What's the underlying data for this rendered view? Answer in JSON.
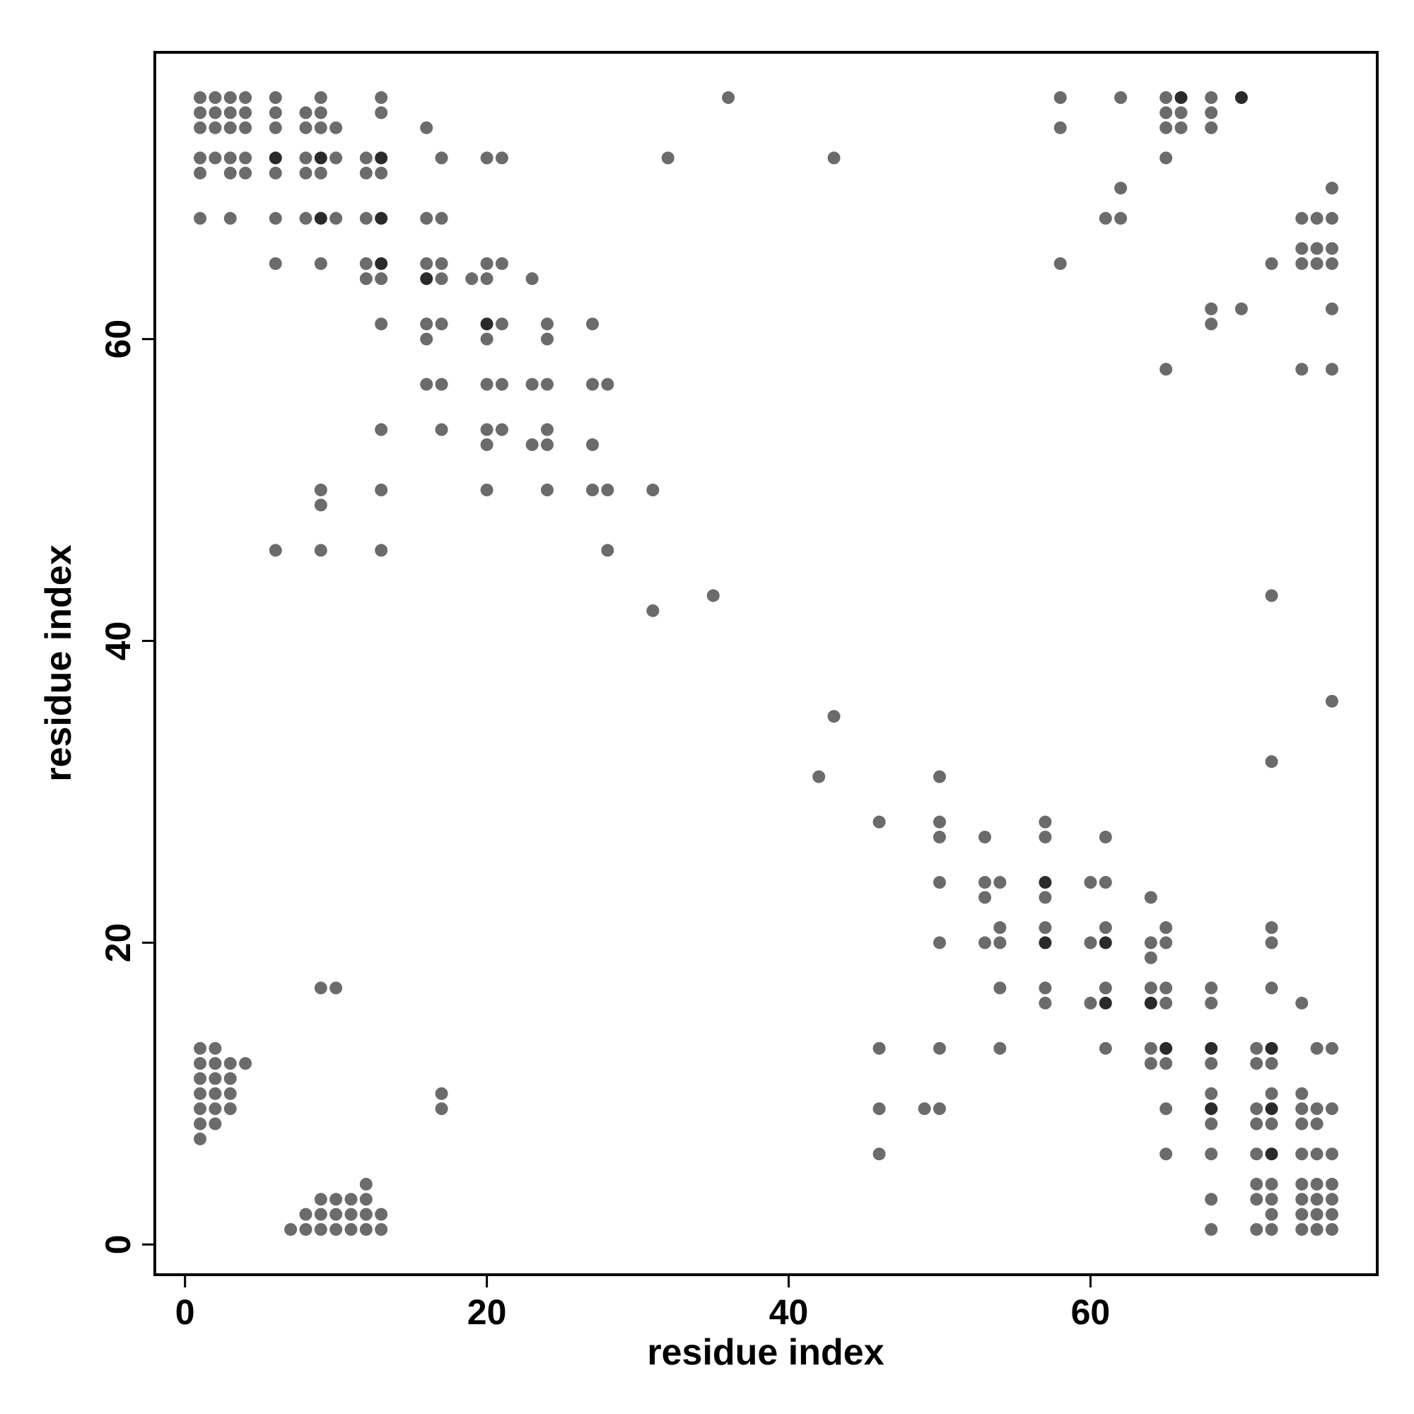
{
  "chart_data": {
    "type": "scatter",
    "xlabel": "residue index",
    "ylabel": "residue index",
    "xlim": [
      -2,
      79
    ],
    "ylim": [
      -2,
      79
    ],
    "xticks": [
      0,
      20,
      40,
      60
    ],
    "yticks": [
      0,
      20,
      40,
      60
    ],
    "series": [
      {
        "color": "#6b6b6b",
        "x": [
          1,
          2,
          3,
          4,
          6,
          9,
          13,
          36,
          58,
          62,
          65,
          68,
          1,
          2,
          3,
          4,
          6,
          8,
          9,
          13,
          65,
          66,
          68,
          1,
          2,
          3,
          4,
          6,
          8,
          9,
          10,
          16,
          58,
          65,
          66,
          68,
          1,
          2,
          3,
          4,
          8,
          10,
          12,
          17,
          20,
          21,
          32,
          43,
          65,
          1,
          3,
          4,
          6,
          8,
          9,
          12,
          13,
          62,
          76,
          1,
          3,
          6,
          8,
          10,
          12,
          16,
          17,
          61,
          62,
          74,
          75,
          76,
          74,
          75,
          76,
          6,
          9,
          12,
          16,
          17,
          20,
          21,
          58,
          72,
          74,
          75,
          76,
          12,
          13,
          17,
          19,
          20,
          23,
          68,
          70,
          76,
          13,
          16,
          17,
          21,
          24,
          27,
          68,
          16,
          20,
          24,
          65,
          74,
          76,
          16,
          17,
          20,
          21,
          23,
          24,
          27,
          28,
          13,
          17,
          20,
          21,
          24,
          20,
          23,
          24,
          27,
          9,
          13,
          20,
          24,
          27,
          28,
          31,
          9,
          6,
          9,
          13,
          28,
          35,
          72,
          31,
          76,
          43,
          72,
          42,
          50,
          46,
          50,
          57,
          50,
          53,
          57,
          61,
          50,
          53,
          54,
          60,
          61,
          53,
          57,
          64,
          54,
          57,
          61,
          65,
          72,
          50,
          53,
          54,
          60,
          64,
          65,
          72,
          64,
          9,
          10,
          54,
          57,
          61,
          64,
          65,
          68,
          72,
          57,
          60,
          65,
          68,
          74,
          1,
          2,
          46,
          50,
          54,
          61,
          64,
          71,
          75,
          76,
          1,
          2,
          3,
          4,
          64,
          65,
          68,
          71,
          72,
          1,
          2,
          3,
          1,
          2,
          3,
          17,
          68,
          72,
          74,
          1,
          2,
          3,
          17,
          46,
          49,
          50,
          65,
          71,
          74,
          75,
          76,
          1,
          2,
          68,
          71,
          72,
          74,
          75,
          1,
          46,
          65,
          68,
          71,
          74,
          75,
          76,
          12,
          71,
          72,
          74,
          75,
          76,
          9,
          10,
          11,
          12,
          68,
          71,
          72,
          74,
          75,
          76,
          8,
          9,
          10,
          11,
          12,
          13,
          72,
          74,
          75,
          76,
          7,
          8,
          9,
          10,
          11,
          12,
          13,
          68,
          71,
          72,
          74,
          75,
          76
        ],
        "values": [
          76,
          76,
          76,
          76,
          76,
          76,
          76,
          76,
          76,
          76,
          76,
          76,
          75,
          75,
          75,
          75,
          75,
          75,
          75,
          75,
          75,
          75,
          75,
          74,
          74,
          74,
          74,
          74,
          74,
          74,
          74,
          74,
          74,
          74,
          74,
          74,
          72,
          72,
          72,
          72,
          72,
          72,
          72,
          72,
          72,
          72,
          72,
          72,
          72,
          71,
          71,
          71,
          71,
          71,
          71,
          71,
          71,
          70,
          70,
          68,
          68,
          68,
          68,
          68,
          68,
          68,
          68,
          68,
          68,
          68,
          68,
          68,
          66,
          66,
          66,
          65,
          65,
          65,
          65,
          65,
          65,
          65,
          65,
          65,
          65,
          65,
          65,
          64,
          64,
          64,
          64,
          64,
          64,
          62,
          62,
          62,
          61,
          61,
          61,
          61,
          61,
          61,
          61,
          60,
          60,
          60,
          58,
          58,
          58,
          57,
          57,
          57,
          57,
          57,
          57,
          57,
          57,
          54,
          54,
          54,
          54,
          54,
          53,
          53,
          53,
          53,
          50,
          50,
          50,
          50,
          50,
          50,
          50,
          49,
          46,
          46,
          46,
          46,
          43,
          43,
          42,
          36,
          35,
          32,
          31,
          31,
          28,
          28,
          28,
          27,
          27,
          27,
          27,
          24,
          24,
          24,
          24,
          24,
          23,
          23,
          23,
          21,
          21,
          21,
          21,
          21,
          20,
          20,
          20,
          20,
          20,
          20,
          20,
          19,
          17,
          17,
          17,
          17,
          17,
          17,
          17,
          17,
          17,
          16,
          16,
          16,
          16,
          16,
          13,
          13,
          13,
          13,
          13,
          13,
          13,
          13,
          13,
          13,
          12,
          12,
          12,
          12,
          12,
          12,
          12,
          12,
          12,
          11,
          11,
          11,
          10,
          10,
          10,
          10,
          10,
          10,
          10,
          9,
          9,
          9,
          9,
          9,
          9,
          9,
          9,
          9,
          9,
          9,
          9,
          8,
          8,
          8,
          8,
          8,
          8,
          8,
          7,
          6,
          6,
          6,
          6,
          6,
          6,
          6,
          4,
          4,
          4,
          4,
          4,
          4,
          3,
          3,
          3,
          3,
          3,
          3,
          3,
          3,
          3,
          3,
          2,
          2,
          2,
          2,
          2,
          2,
          2,
          2,
          2,
          2,
          1,
          1,
          1,
          1,
          1,
          1,
          1,
          1,
          1,
          1,
          1,
          1,
          1
        ]
      },
      {
        "color": "#2a2a2a",
        "x": [
          6,
          9,
          13,
          9,
          13,
          13,
          16,
          20,
          57,
          57,
          61,
          64,
          61,
          65,
          68,
          72,
          68,
          72,
          72,
          66,
          70
        ],
        "values": [
          72,
          72,
          72,
          68,
          68,
          65,
          64,
          61,
          24,
          20,
          20,
          16,
          16,
          13,
          13,
          13,
          9,
          9,
          6,
          76,
          76
        ]
      }
    ]
  }
}
